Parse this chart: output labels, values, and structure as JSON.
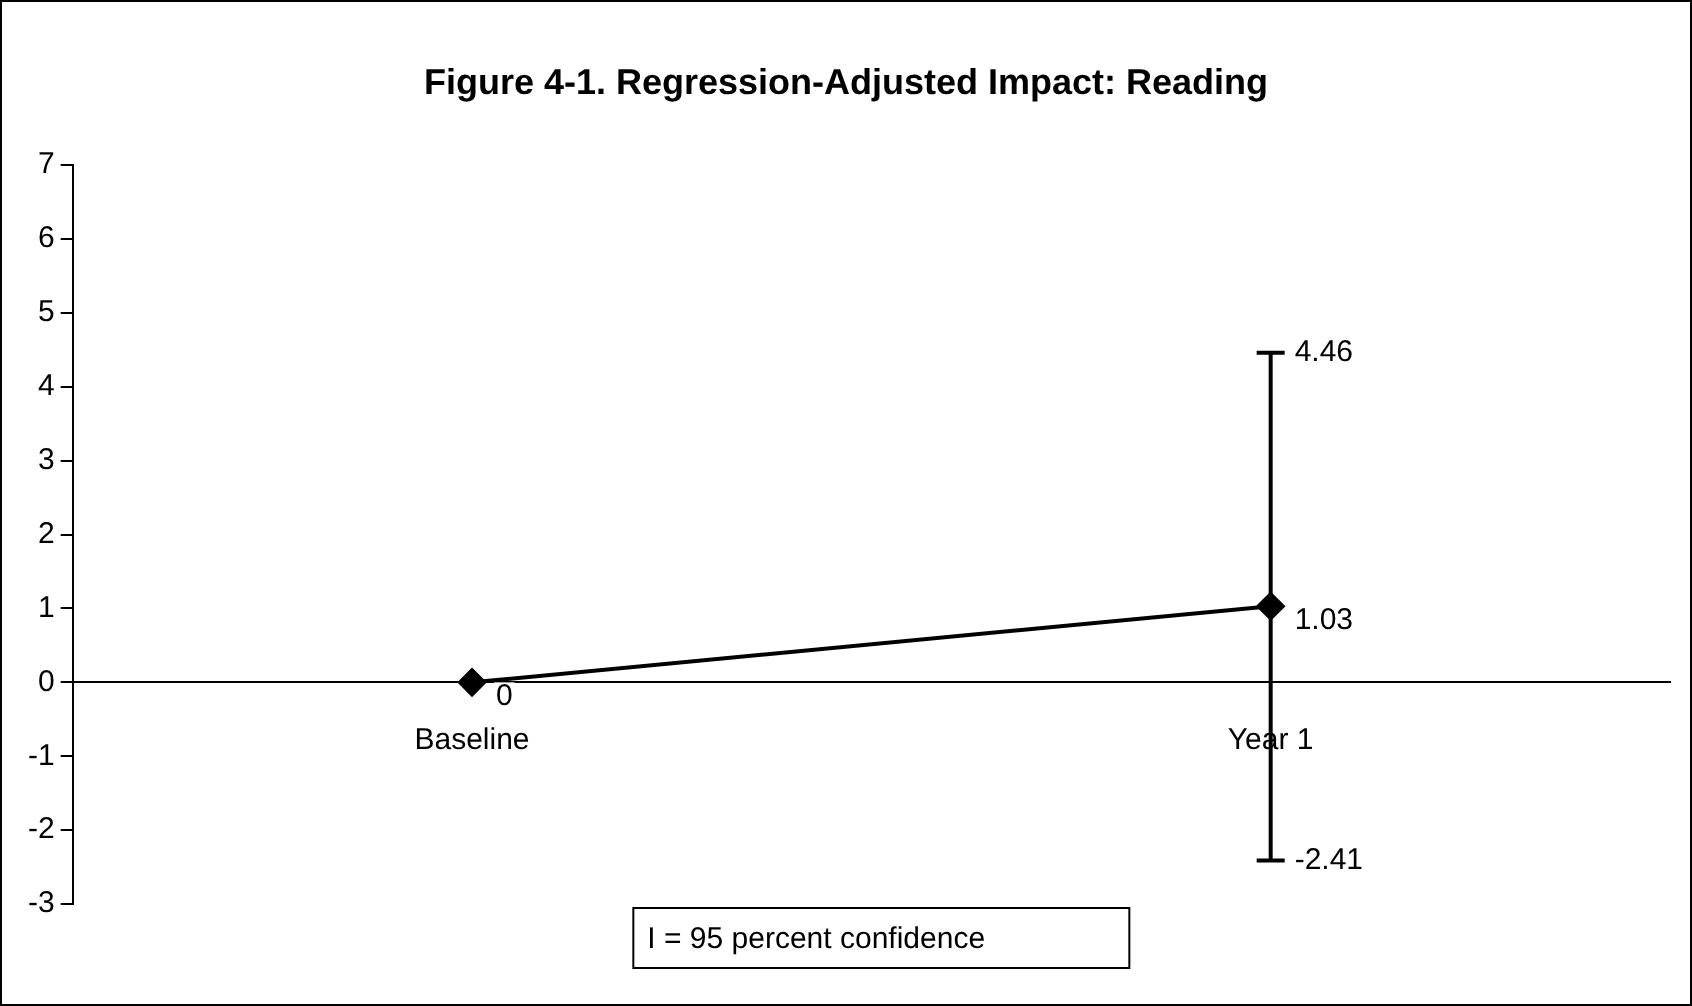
{
  "chart_data": {
    "type": "line",
    "title": "Figure 4-1. Regression-Adjusted Impact: Reading",
    "categories": [
      "Baseline",
      "Year 1"
    ],
    "series": [
      {
        "color": "#000000",
        "values": [
          0,
          1.03
        ],
        "errors": [
          null,
          [
            -2.41,
            4.46
          ]
        ],
        "value_labels": [
          "0",
          "1.03"
        ]
      }
    ],
    "ylim": [
      -3,
      7
    ],
    "yticks": [
      -3,
      -2,
      -1,
      0,
      1,
      2,
      3,
      4,
      5,
      6,
      7
    ],
    "grid": false,
    "legend": false,
    "marker": "diamond",
    "line_style": "solid",
    "annotations": [
      {
        "text": "4.46",
        "x": "Year 1",
        "y": 4.46
      },
      {
        "text": "-2.41",
        "x": "Year 1",
        "y": -2.41
      },
      "I = 95 percent confidence"
    ]
  }
}
